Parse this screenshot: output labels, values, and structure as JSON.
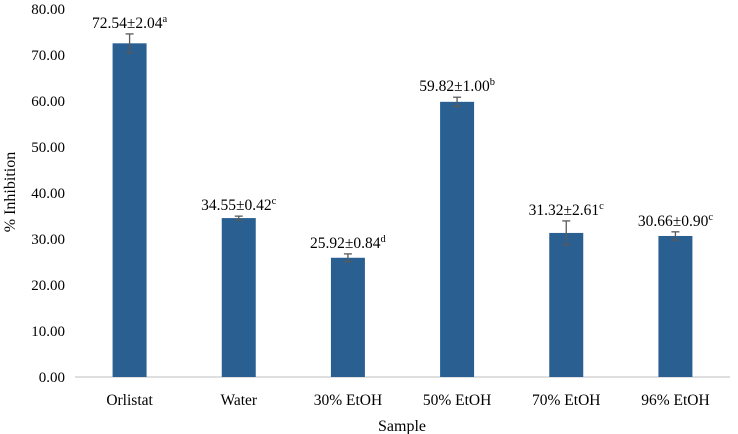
{
  "chart_data": {
    "type": "bar",
    "title": "",
    "xlabel": "Sample",
    "ylabel": "% Inhibition",
    "ylim": [
      0,
      80
    ],
    "yticks": [
      0,
      10,
      20,
      30,
      40,
      50,
      60,
      70,
      80
    ],
    "ytick_labels": [
      "0.00",
      "10.00",
      "20.00",
      "30.00",
      "40.00",
      "50.00",
      "60.00",
      "70.00",
      "80.00"
    ],
    "grid": false,
    "legend": "none",
    "bar_color": "#2a5f92",
    "error_color": "#595959",
    "categories": [
      "Orlistat",
      "Water",
      "30% EtOH",
      "50% EtOH",
      "70% EtOH",
      "96% EtOH"
    ],
    "values": [
      72.54,
      34.55,
      25.92,
      59.82,
      31.32,
      30.66
    ],
    "errors": [
      2.04,
      0.42,
      0.84,
      1.0,
      2.61,
      0.9
    ],
    "labels": [
      {
        "main": "72.54±2.04",
        "sup": "a"
      },
      {
        "main": "34.55±0.42",
        "sup": "c"
      },
      {
        "main": "25.92±0.84",
        "sup": "d"
      },
      {
        "main": "59.82±1.00",
        "sup": "b"
      },
      {
        "main": "31.32±2.61",
        "sup": "c"
      },
      {
        "main": "30.66±0.90",
        "sup": "c"
      }
    ]
  }
}
